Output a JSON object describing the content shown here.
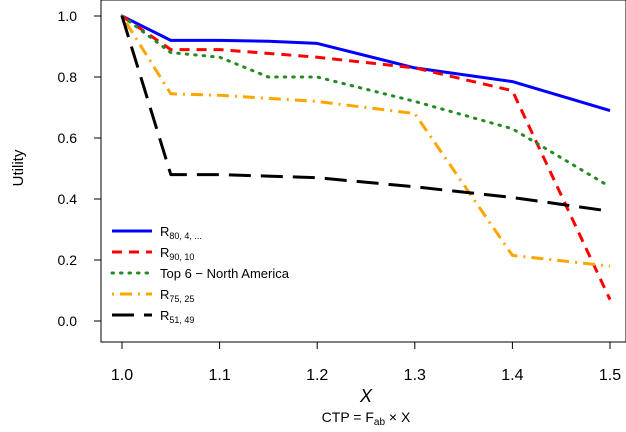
{
  "chart_data": {
    "type": "line",
    "xlabel": "X",
    "ylabel": "Utility",
    "caption": "CTP = F",
    "caption_sub": "ab",
    "caption_tail": " × X",
    "xlim": [
      1.0,
      1.5
    ],
    "ylim": [
      0.0,
      1.0
    ],
    "x_ticks": [
      "1.0",
      "1.1",
      "1.2",
      "1.3",
      "1.4",
      "1.5"
    ],
    "y_ticks": [
      "0.0",
      "0.2",
      "0.4",
      "0.6",
      "0.8",
      "1.0"
    ],
    "legend_position": "bottom-left",
    "series": [
      {
        "name": "R",
        "name_sub": "80, 4, ...",
        "color": "#0000ff",
        "style": "solid",
        "x": [
          1.0,
          1.05,
          1.1,
          1.15,
          1.2,
          1.3,
          1.4,
          1.5
        ],
        "y": [
          1.0,
          0.92,
          0.92,
          0.917,
          0.91,
          0.83,
          0.785,
          0.69
        ]
      },
      {
        "name": "R",
        "name_sub": "90, 10",
        "color": "#ff0000",
        "style": "dashed",
        "x": [
          1.0,
          1.05,
          1.1,
          1.2,
          1.3,
          1.4,
          1.5
        ],
        "y": [
          1.0,
          0.89,
          0.89,
          0.865,
          0.83,
          0.755,
          0.07
        ]
      },
      {
        "name": "Top 6 − North America",
        "name_sub": "",
        "color": "#228b22",
        "style": "dotted",
        "x": [
          1.0,
          1.05,
          1.1,
          1.15,
          1.2,
          1.3,
          1.4,
          1.5
        ],
        "y": [
          1.0,
          0.88,
          0.865,
          0.8,
          0.8,
          0.72,
          0.63,
          0.44
        ]
      },
      {
        "name": "R",
        "name_sub": "75, 25",
        "color": "#ffa500",
        "style": "dotdash",
        "x": [
          1.0,
          1.05,
          1.1,
          1.2,
          1.3,
          1.4,
          1.5
        ],
        "y": [
          1.0,
          0.745,
          0.74,
          0.72,
          0.68,
          0.215,
          0.18
        ]
      },
      {
        "name": "R",
        "name_sub": "51, 49",
        "color": "#000000",
        "style": "longdash",
        "x": [
          1.0,
          1.05,
          1.1,
          1.2,
          1.3,
          1.4,
          1.5
        ],
        "y": [
          1.0,
          0.48,
          0.48,
          0.47,
          0.44,
          0.405,
          0.36
        ]
      }
    ]
  }
}
